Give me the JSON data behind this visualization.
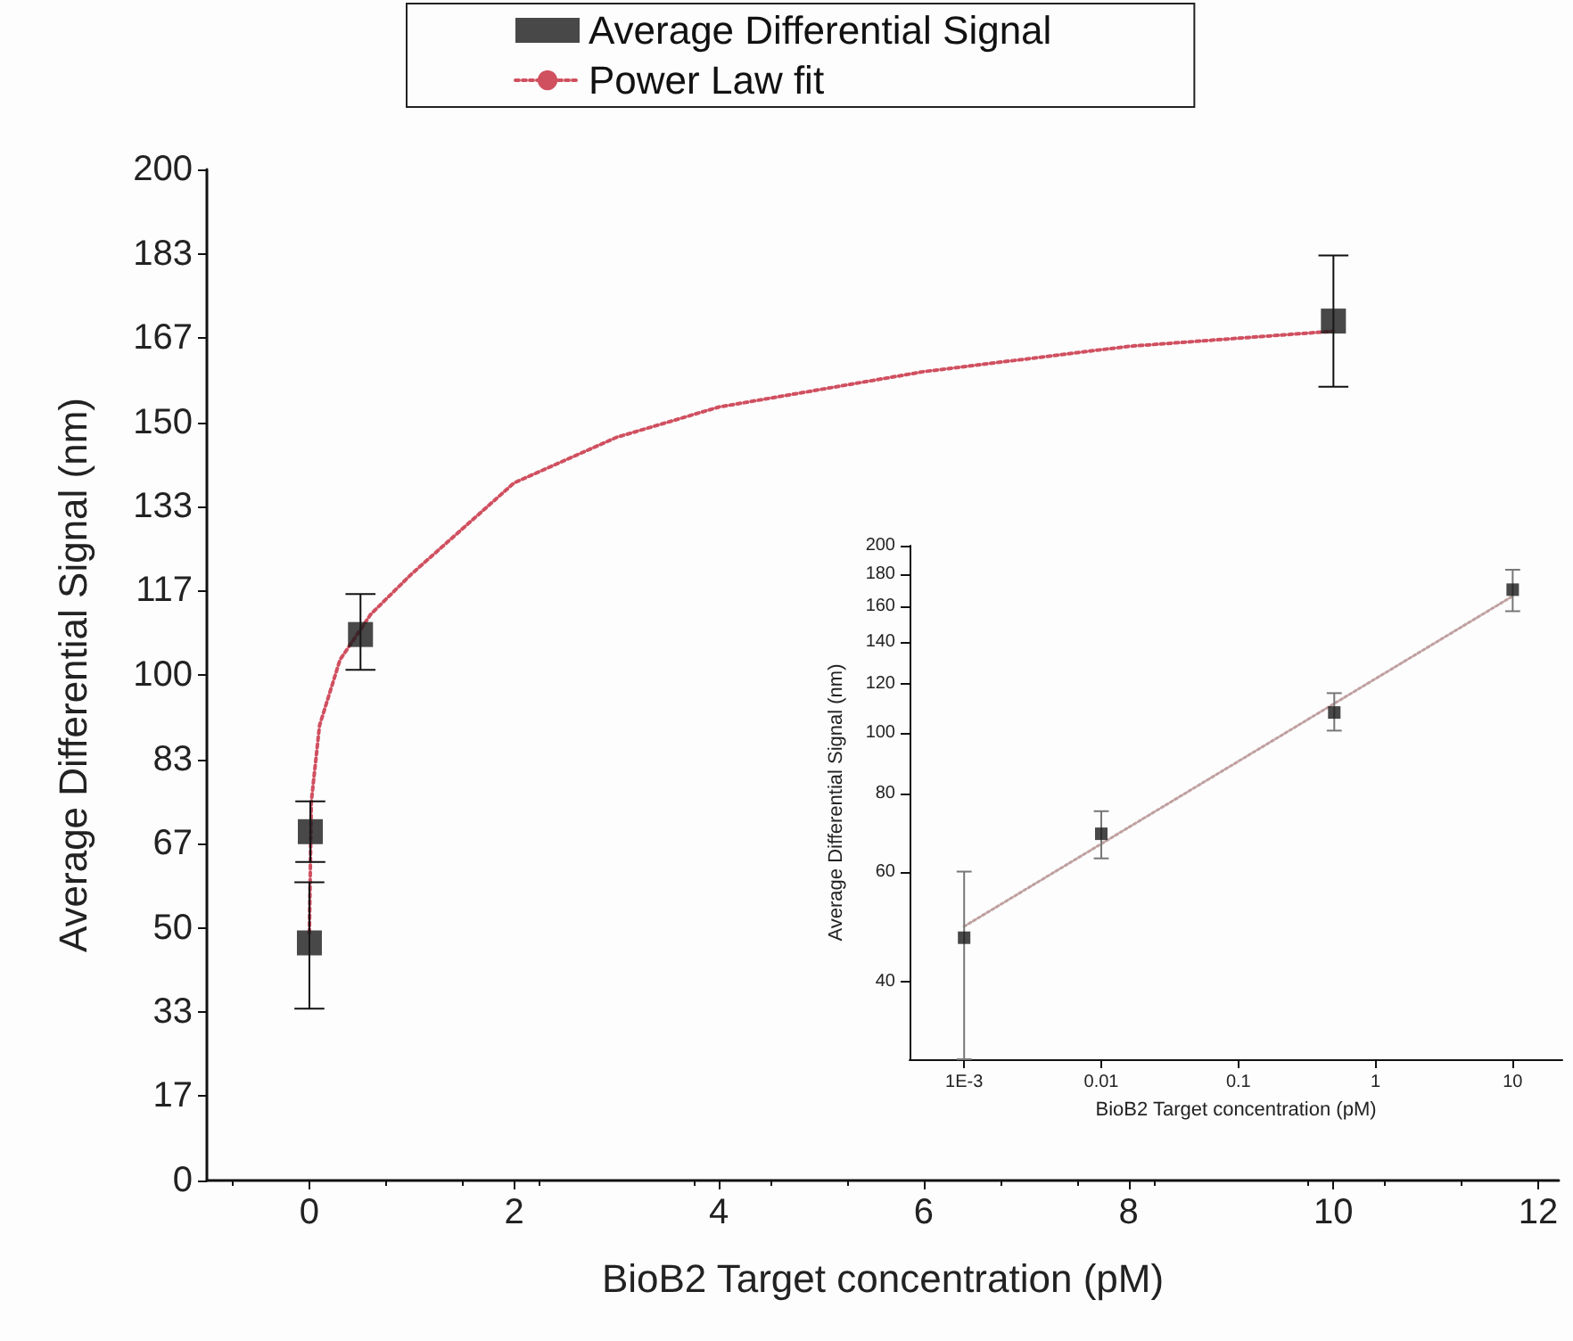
{
  "chart_data": [
    {
      "type": "scatter",
      "legend": "top",
      "marker": "square",
      "xlabel": "BioB2 Target concentration (pM)",
      "ylabel": "Average Differential Signal (nm)",
      "xlim": [
        -1,
        12.2
      ],
      "ylim": [
        0,
        200
      ],
      "xticks": [
        0,
        2,
        4,
        6,
        8,
        10,
        12
      ],
      "yticks": [
        0,
        {
          "value": 16.67,
          "label": "17"
        },
        {
          "value": 33.33,
          "label": "33"
        },
        50,
        {
          "value": 66.67,
          "label": "67"
        },
        {
          "value": 83.33,
          "label": "83"
        },
        100,
        {
          "value": 116.67,
          "label": "117"
        },
        {
          "value": 133.33,
          "label": "133"
        },
        150,
        {
          "value": 166.67,
          "label": "167"
        },
        {
          "value": 183.33,
          "label": "183"
        },
        200
      ],
      "series": [
        {
          "name": "Average Differential Signal",
          "color": "#1a1a1a",
          "x": [
            0.001,
            0.01,
            0.5,
            10
          ],
          "values": [
            47,
            69,
            108,
            170
          ],
          "errors": [
            [
              34,
              59
            ],
            [
              63,
              75
            ],
            [
              101,
              116
            ],
            [
              157,
              183
            ]
          ]
        },
        {
          "name": "Power Law fit",
          "type": "line",
          "color": "#d05060",
          "line_style": "dotted",
          "marker": "none",
          "x": [
            0.001,
            0.02,
            0.1,
            0.3,
            0.6,
            1,
            2,
            3,
            4,
            6,
            8,
            10
          ],
          "values": [
            49,
            75,
            90,
            103,
            112,
            120,
            138,
            147,
            153,
            160,
            165,
            168
          ]
        }
      ]
    },
    {
      "type": "scatter",
      "legend": false,
      "log": "xy",
      "marker": "square",
      "xlabel": "BioB2 Target concentration (pM)",
      "ylabel": "Average Differential Signal (nm)",
      "xlim": [
        0.0004,
        23
      ],
      "ylim": [
        30,
        200
      ],
      "xticks": [
        {
          "value": 0.001,
          "label": "1E-3"
        },
        0.01,
        0.1,
        1,
        10
      ],
      "yticks": [
        40,
        60,
        80,
        100,
        120,
        140,
        160,
        180,
        200
      ],
      "series": [
        {
          "color": "#1a1a1a",
          "x": [
            0.001,
            0.01,
            0.5,
            10
          ],
          "values": [
            47,
            69,
            108,
            170
          ],
          "errors": [
            [
              30,
              60
            ],
            [
              63,
              75
            ],
            [
              101,
              116
            ],
            [
              157,
              183
            ]
          ]
        },
        {
          "type": "line",
          "color": "#c0a0a0",
          "line_style": "dotted",
          "marker": "none",
          "x": [
            0.001,
            10
          ],
          "values": [
            49,
            166
          ]
        }
      ]
    }
  ]
}
